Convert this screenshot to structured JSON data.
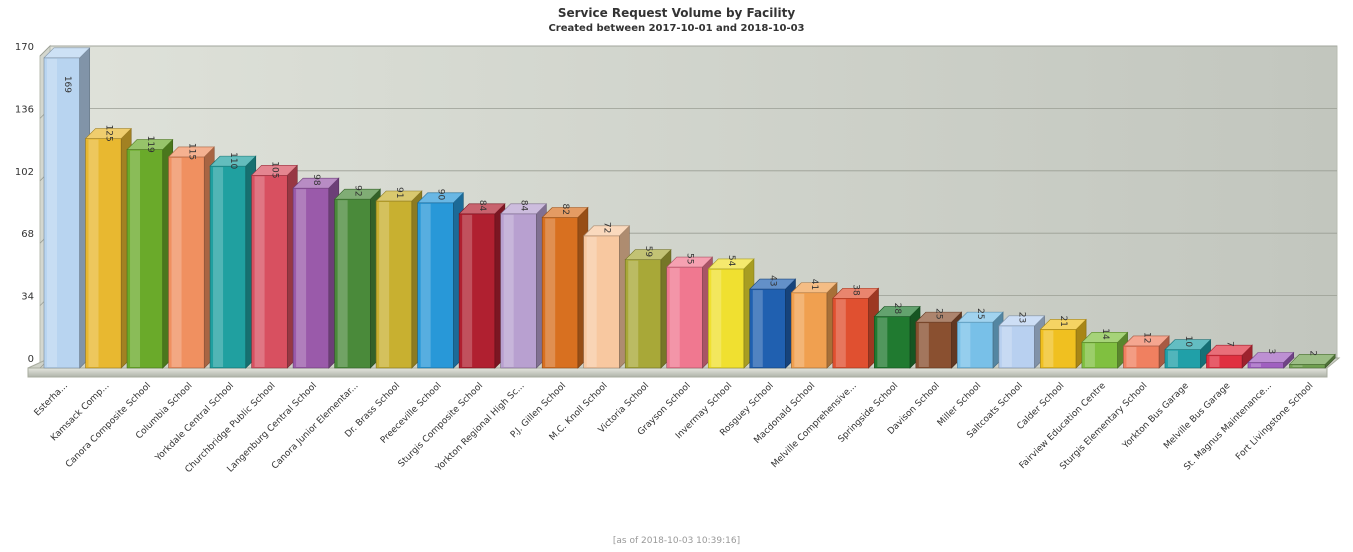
{
  "chart_data": {
    "type": "bar",
    "title": "Service Request Volume by Facility",
    "subtitle": "Created between 2017-10-01 and 2018-10-03",
    "footer": "[as of 2018-10-03 10:39:16]",
    "ylim": [
      0,
      170
    ],
    "yticks": [
      0,
      34,
      68,
      102,
      136,
      170
    ],
    "grid": true,
    "categories": [
      "Esterha...",
      "Kamsack Comp...",
      "Canora Composite School",
      "Columbia School",
      "Yorkdale Central School",
      "Churchbridge Public School",
      "Langenburg Central School",
      "Canora Junior Elementar...",
      "Dr. Brass School",
      "Preeceville School",
      "Sturgis Composite School",
      "Yorkton Regional High Sc...",
      "P.J. Gillen School",
      "M.C. Knoll School",
      "Victoria School",
      "Grayson School",
      "Invermay School",
      "Rosguey School",
      "Macdonald School",
      "Melville Comprehensive...",
      "Springside School",
      "Davison School",
      "Miller School",
      "Saltcoats School",
      "Calder School",
      "Fairview Education Centre",
      "Sturgis Elementary School",
      "Yorkton Bus Garage",
      "Melville Bus Garage",
      "St. Magnus Maintenance...",
      "Fort Livingstone School"
    ],
    "values": [
      169,
      125,
      119,
      115,
      110,
      105,
      98,
      92,
      91,
      90,
      84,
      84,
      82,
      72,
      59,
      55,
      54,
      43,
      41,
      38,
      28,
      25,
      25,
      23,
      21,
      14,
      12,
      10,
      7,
      3,
      2
    ],
    "value_labels": [
      "169",
      "125",
      "119",
      "115",
      "110",
      "105",
      "98",
      "92",
      "91",
      "90",
      "84",
      "84",
      "82",
      "72",
      "59",
      "55",
      "54",
      "43",
      "41",
      "38",
      "28",
      "25",
      "25",
      "23",
      "21",
      "14",
      "12",
      "10",
      "7",
      "3",
      "2"
    ],
    "colors": [
      "#b8d4f0",
      "#e8b830",
      "#6aaa2a",
      "#f09060",
      "#20a0a0",
      "#d85060",
      "#9a5aaa",
      "#4a8a3a",
      "#c8b030",
      "#2898d8",
      "#b02030",
      "#b8a0d0",
      "#d87020",
      "#f8c8a0",
      "#a8a838",
      "#f07890",
      "#f0e030",
      "#2060b0",
      "#f0a050",
      "#e05030",
      "#207a30",
      "#8a5030",
      "#78c0e8",
      "#b8d0f0",
      "#f0c020",
      "#80c040",
      "#f08060",
      "#20a0a8",
      "#e03040",
      "#a060c0",
      "#70a050"
    ]
  }
}
